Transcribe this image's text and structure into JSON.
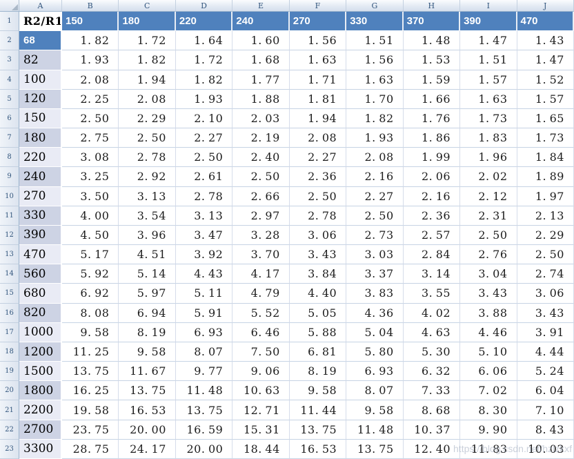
{
  "app": {
    "type": "spreadsheet-grid"
  },
  "colors": {
    "accent_blue": "#4F81BD",
    "band_dark": "#CDD3E4",
    "band_light": "#E9EBF5",
    "gridline_h": "#C6D3E4",
    "gridline_v": "#D5DCEA",
    "header_strip_text": "#33567D",
    "header_strip_border": "#9EB6CE"
  },
  "watermark": {
    "text": "https://blog.csdn.net/hzlzkxf"
  },
  "grid": {
    "corner_label": "",
    "column_letters": [
      "A",
      "B",
      "C",
      "D",
      "E",
      "F",
      "G",
      "H",
      "I",
      "J"
    ],
    "rows": [
      {
        "n": "1",
        "a": "R2/R1",
        "a_style": "title",
        "kind": "header",
        "values": [
          "150",
          "180",
          "220",
          "240",
          "270",
          "330",
          "370",
          "390",
          "470"
        ]
      },
      {
        "n": "2",
        "a": "68",
        "a_style": "blue",
        "kind": "data",
        "values": [
          "1.82",
          "1.72",
          "1.64",
          "1.60",
          "1.56",
          "1.51",
          "1.48",
          "1.47",
          "1.43"
        ]
      },
      {
        "n": "3",
        "a": "82",
        "a_style": "dark",
        "kind": "data",
        "values": [
          "1.93",
          "1.82",
          "1.72",
          "1.68",
          "1.63",
          "1.56",
          "1.53",
          "1.51",
          "1.47"
        ]
      },
      {
        "n": "4",
        "a": "100",
        "a_style": "light",
        "kind": "data",
        "values": [
          "2.08",
          "1.94",
          "1.82",
          "1.77",
          "1.71",
          "1.63",
          "1.59",
          "1.57",
          "1.52"
        ]
      },
      {
        "n": "5",
        "a": "120",
        "a_style": "dark",
        "kind": "data",
        "values": [
          "2.25",
          "2.08",
          "1.93",
          "1.88",
          "1.81",
          "1.70",
          "1.66",
          "1.63",
          "1.57"
        ]
      },
      {
        "n": "6",
        "a": "150",
        "a_style": "light",
        "kind": "data",
        "values": [
          "2.50",
          "2.29",
          "2.10",
          "2.03",
          "1.94",
          "1.82",
          "1.76",
          "1.73",
          "1.65"
        ]
      },
      {
        "n": "7",
        "a": "180",
        "a_style": "dark",
        "kind": "data",
        "values": [
          "2.75",
          "2.50",
          "2.27",
          "2.19",
          "2.08",
          "1.93",
          "1.86",
          "1.83",
          "1.73"
        ]
      },
      {
        "n": "8",
        "a": "220",
        "a_style": "light",
        "kind": "data",
        "values": [
          "3.08",
          "2.78",
          "2.50",
          "2.40",
          "2.27",
          "2.08",
          "1.99",
          "1.96",
          "1.84"
        ]
      },
      {
        "n": "9",
        "a": "240",
        "a_style": "dark",
        "kind": "data",
        "values": [
          "3.25",
          "2.92",
          "2.61",
          "2.50",
          "2.36",
          "2.16",
          "2.06",
          "2.02",
          "1.89"
        ]
      },
      {
        "n": "10",
        "a": "270",
        "a_style": "light",
        "kind": "data",
        "values": [
          "3.50",
          "3.13",
          "2.78",
          "2.66",
          "2.50",
          "2.27",
          "2.16",
          "2.12",
          "1.97"
        ]
      },
      {
        "n": "11",
        "a": "330",
        "a_style": "dark",
        "kind": "data",
        "values": [
          "4.00",
          "3.54",
          "3.13",
          "2.97",
          "2.78",
          "2.50",
          "2.36",
          "2.31",
          "2.13"
        ]
      },
      {
        "n": "12",
        "a": "390",
        "a_style": "dark",
        "kind": "data",
        "values": [
          "4.50",
          "3.96",
          "3.47",
          "3.28",
          "3.06",
          "2.73",
          "2.57",
          "2.50",
          "2.29"
        ]
      },
      {
        "n": "13",
        "a": "470",
        "a_style": "light",
        "kind": "data",
        "values": [
          "5.17",
          "4.51",
          "3.92",
          "3.70",
          "3.43",
          "3.03",
          "2.84",
          "2.76",
          "2.50"
        ]
      },
      {
        "n": "14",
        "a": "560",
        "a_style": "dark",
        "kind": "data",
        "values": [
          "5.92",
          "5.14",
          "4.43",
          "4.17",
          "3.84",
          "3.37",
          "3.14",
          "3.04",
          "2.74"
        ]
      },
      {
        "n": "15",
        "a": "680",
        "a_style": "light",
        "kind": "data",
        "values": [
          "6.92",
          "5.97",
          "5.11",
          "4.79",
          "4.40",
          "3.83",
          "3.55",
          "3.43",
          "3.06"
        ]
      },
      {
        "n": "16",
        "a": "820",
        "a_style": "dark",
        "kind": "data",
        "values": [
          "8.08",
          "6.94",
          "5.91",
          "5.52",
          "5.05",
          "4.36",
          "4.02",
          "3.88",
          "3.43"
        ]
      },
      {
        "n": "17",
        "a": "1000",
        "a_style": "light",
        "kind": "data",
        "values": [
          "9.58",
          "8.19",
          "6.93",
          "6.46",
          "5.88",
          "5.04",
          "4.63",
          "4.46",
          "3.91"
        ]
      },
      {
        "n": "18",
        "a": "1200",
        "a_style": "dark",
        "kind": "data",
        "values": [
          "11.25",
          "9.58",
          "8.07",
          "7.50",
          "6.81",
          "5.80",
          "5.30",
          "5.10",
          "4.44"
        ]
      },
      {
        "n": "19",
        "a": "1500",
        "a_style": "light",
        "kind": "data",
        "values": [
          "13.75",
          "11.67",
          "9.77",
          "9.06",
          "8.19",
          "6.93",
          "6.32",
          "6.06",
          "5.24"
        ]
      },
      {
        "n": "20",
        "a": "1800",
        "a_style": "dark",
        "kind": "data",
        "values": [
          "16.25",
          "13.75",
          "11.48",
          "10.63",
          "9.58",
          "8.07",
          "7.33",
          "7.02",
          "6.04"
        ]
      },
      {
        "n": "21",
        "a": "2200",
        "a_style": "light",
        "kind": "data",
        "values": [
          "19.58",
          "16.53",
          "13.75",
          "12.71",
          "11.44",
          "9.58",
          "8.68",
          "8.30",
          "7.10"
        ]
      },
      {
        "n": "22",
        "a": "2700",
        "a_style": "dark",
        "kind": "data",
        "values": [
          "23.75",
          "20.00",
          "16.59",
          "15.31",
          "13.75",
          "11.48",
          "10.37",
          "9.90",
          "8.43"
        ]
      },
      {
        "n": "23",
        "a": "3300",
        "a_style": "light",
        "kind": "data",
        "values": [
          "28.75",
          "24.17",
          "20.00",
          "18.44",
          "16.53",
          "13.75",
          "12.40",
          "11.83",
          "10.03"
        ]
      }
    ]
  }
}
